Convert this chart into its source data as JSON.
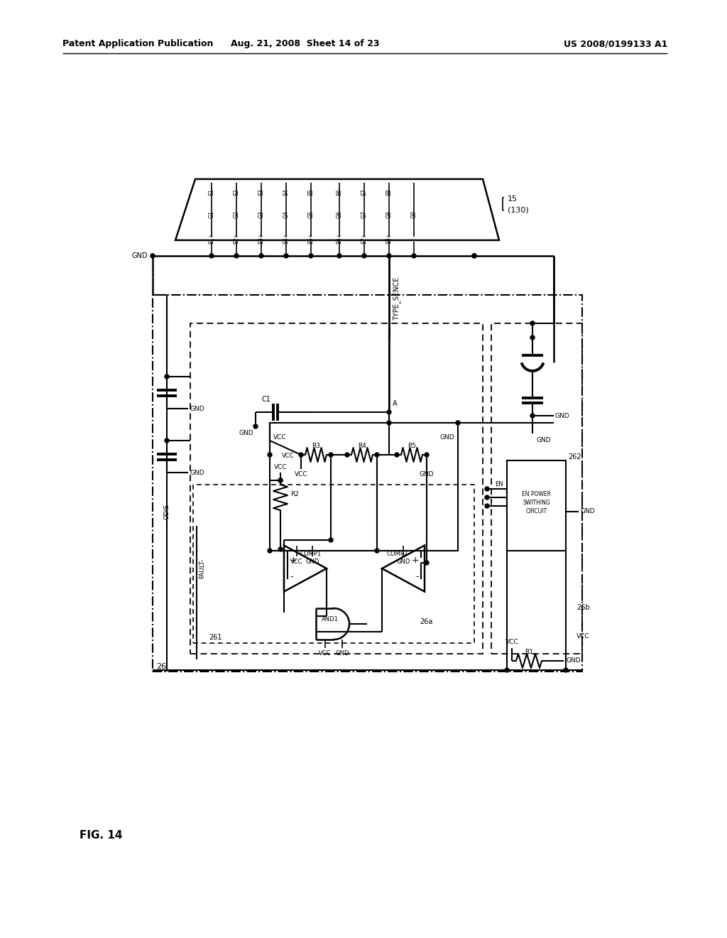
{
  "title_left": "Patent Application Publication",
  "title_center": "Aug. 21, 2008  Sheet 14 of 23",
  "title_right": "US 2008/0199133 A1",
  "fig_label": "FIG. 14",
  "background": "#ffffff"
}
